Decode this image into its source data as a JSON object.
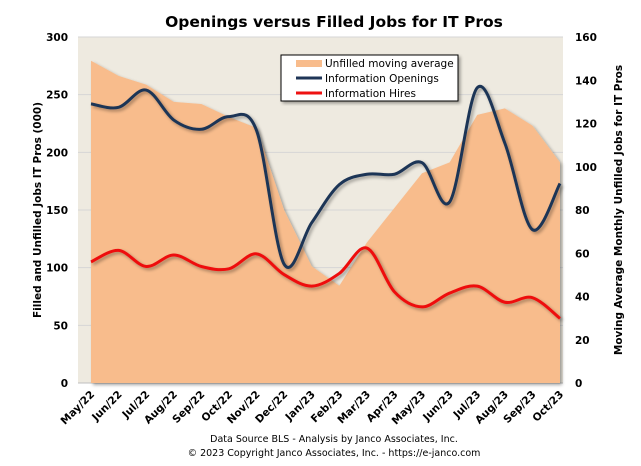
{
  "chart_data": {
    "type": "line",
    "title": "Openings versus Filled Jobs for IT Pros",
    "ylabel": "Filled and Unfilled Jobs IT Pros (000)",
    "ylabel_right": "Moving Average Monthly Unfilled Jobs for IT Pros",
    "ylim": [
      0,
      300
    ],
    "ylim_right": [
      0,
      160
    ],
    "yticks": [
      0,
      50,
      100,
      150,
      200,
      250,
      300
    ],
    "yticks_right": [
      0,
      20,
      40,
      60,
      80,
      100,
      120,
      140,
      160
    ],
    "grid": true,
    "legend": "top-center",
    "categories": [
      "May/22",
      "Jun/22",
      "Jul/22",
      "Aug/22",
      "Sep/22",
      "Oct/22",
      "Nov/22",
      "Dec/22",
      "Jan/23",
      "Feb/23",
      "Mar/23",
      "Apr/23",
      "May/23",
      "Jun/23",
      "Jul/23",
      "Aug/23",
      "Sep/23",
      "Oct/23"
    ],
    "series": [
      {
        "name": "Unfilled moving average",
        "type": "area",
        "axis": "right",
        "color": "#F8BC8C",
        "values": [
          149,
          142,
          138,
          130,
          129,
          123,
          118,
          80,
          54,
          45,
          65,
          81,
          97,
          102,
          124,
          127,
          119,
          102
        ]
      },
      {
        "name": "Information Openings",
        "type": "line",
        "axis": "left",
        "color": "#1F3557",
        "values": [
          242,
          239,
          254,
          228,
          220,
          231,
          219,
          103,
          139,
          172,
          181,
          181,
          191,
          157,
          256,
          208,
          133,
          173
        ]
      },
      {
        "name": "Information Hires",
        "type": "line",
        "axis": "left",
        "color": "#EE1111",
        "values": [
          105,
          115,
          101,
          111,
          101,
          99,
          112,
          94,
          84,
          95,
          117,
          79,
          66,
          78,
          84,
          70,
          74,
          56
        ]
      }
    ],
    "plot_background": "#EEEAE0"
  },
  "footer": {
    "line1": "Data Source BLS - Analysis by Janco Associates, Inc.",
    "line2": "© 2023 Copyright Janco Associates, Inc. - https://e-janco.com"
  }
}
